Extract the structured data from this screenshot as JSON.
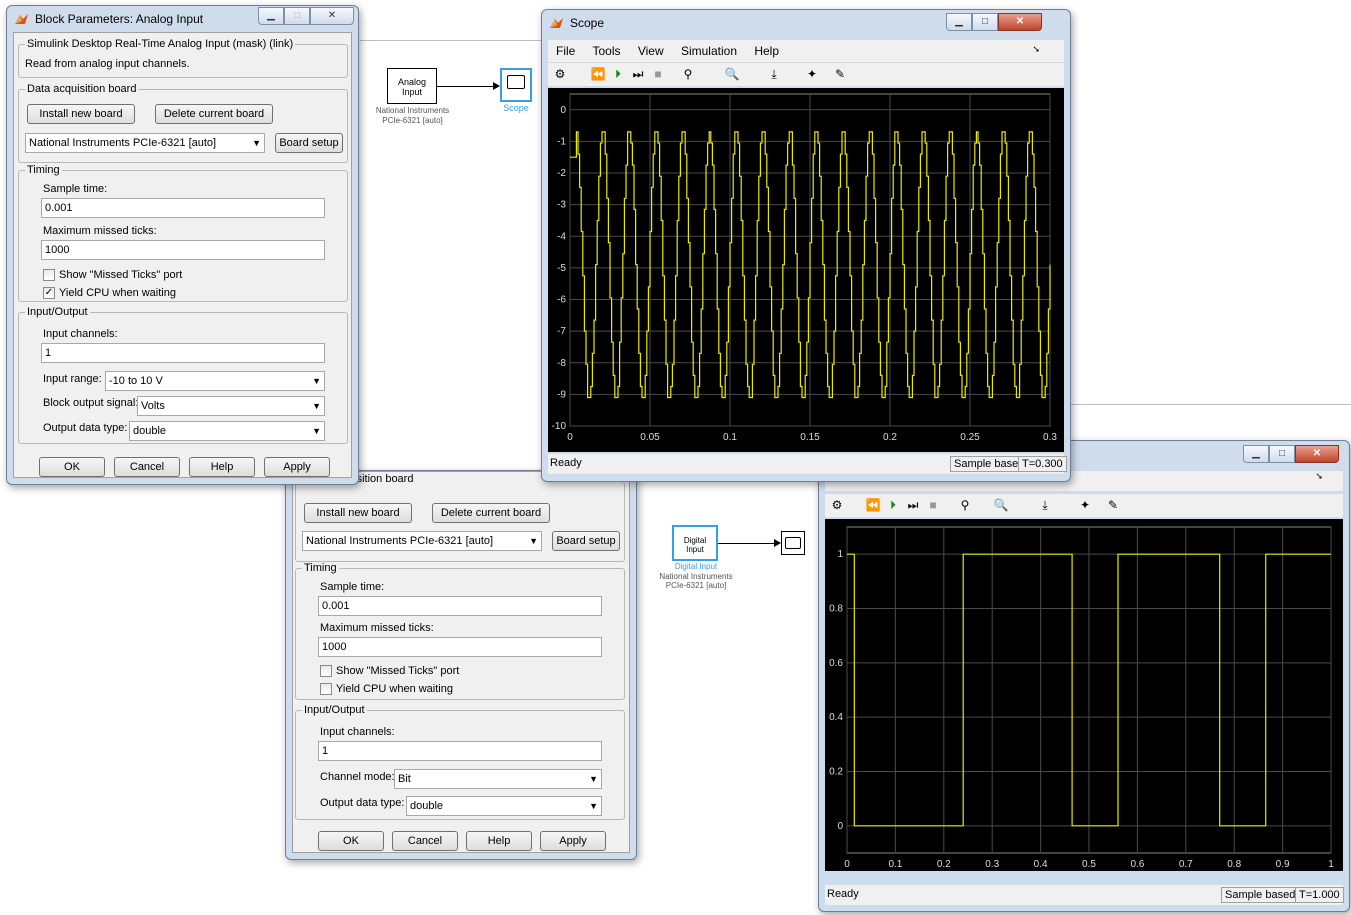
{
  "analog_dialog": {
    "title": "Block Parameters: Analog Input",
    "mask_group": "Simulink Desktop Real-Time Analog Input (mask) (link)",
    "description": "Read from analog input channels.",
    "daq_group": "Data acquisition board",
    "install_btn": "Install new board",
    "delete_btn": "Delete current board",
    "board_value": "National Instruments PCIe-6321 [auto]",
    "board_setup_btn": "Board setup",
    "timing_group": "Timing",
    "sample_time_label": "Sample time:",
    "sample_time_value": "0.001",
    "missed_ticks_label": "Maximum missed ticks:",
    "missed_ticks_value": "1000",
    "show_missed_label": "Show \"Missed Ticks\" port",
    "show_missed_checked": false,
    "yield_cpu_label": "Yield CPU when waiting",
    "yield_cpu_checked": true,
    "io_group": "Input/Output",
    "channels_label": "Input channels:",
    "channels_value": "1",
    "range_label": "Input range:",
    "range_value": "-10 to 10 V",
    "output_signal_label": "Block output signal:",
    "output_signal_value": "Volts",
    "dtype_label": "Output data type:",
    "dtype_value": "double",
    "ok": "OK",
    "cancel": "Cancel",
    "help": "Help",
    "apply": "Apply"
  },
  "digital_dialog": {
    "daq_group": "Data acquisition board",
    "install_btn": "Install new board",
    "delete_btn": "Delete current board",
    "board_value": "National Instruments PCIe-6321 [auto]",
    "board_setup_btn": "Board setup",
    "timing_group": "Timing",
    "sample_time_label": "Sample time:",
    "sample_time_value": "0.001",
    "missed_ticks_label": "Maximum missed ticks:",
    "missed_ticks_value": "1000",
    "show_missed_label": "Show \"Missed Ticks\" port",
    "show_missed_checked": false,
    "yield_cpu_label": "Yield CPU when waiting",
    "yield_cpu_checked": false,
    "io_group": "Input/Output",
    "channels_label": "Input channels:",
    "channels_value": "1",
    "mode_label": "Channel mode:",
    "mode_value": "Bit",
    "dtype_label": "Output data type:",
    "dtype_value": "double",
    "ok": "OK",
    "cancel": "Cancel",
    "help": "Help",
    "apply": "Apply"
  },
  "model": {
    "analog_block_label": "Analog Input",
    "analog_block_caption": "National Instruments PCIe-6321 [auto]",
    "scope_block_label": "Scope",
    "digital_block_label": "Digital Input",
    "digital_block_name": "Digital Input",
    "digital_block_caption": "National Instruments PCIe-6321 [auto]"
  },
  "scope1": {
    "title": "Scope",
    "menu": [
      "File",
      "Tools",
      "View",
      "Simulation",
      "Help"
    ],
    "status": "Ready",
    "mode": "Sample based",
    "time": "T=0.300"
  },
  "scope2": {
    "status": "Ready",
    "mode": "Sample based",
    "time": "T=1.000"
  },
  "colors": {
    "trace": "#e6e61a",
    "plot_bg": "#000000",
    "grid": "#4a4a4a",
    "selection": "#33a0e8"
  },
  "chart_data": [
    {
      "type": "line",
      "title": "",
      "xlabel": "",
      "ylabel": "",
      "xlim": [
        0,
        0.3
      ],
      "ylim": [
        -10,
        0.5
      ],
      "xticks": [
        0,
        0.05,
        0.1,
        0.15,
        0.2,
        0.25,
        0.3
      ],
      "yticks": [
        0,
        -1,
        -2,
        -3,
        -4,
        -5,
        -6,
        -7,
        -8,
        -9,
        -10
      ],
      "grid": true,
      "series": [
        {
          "period": 0.0167,
          "max": -0.6,
          "min": -9.2,
          "initial": -1.5
        }
      ]
    },
    {
      "type": "line",
      "title": "",
      "xlabel": "",
      "ylabel": "",
      "xlim": [
        0,
        1
      ],
      "ylim": [
        -0.1,
        1.1
      ],
      "xticks": [
        0,
        0.1,
        0.2,
        0.3,
        0.4,
        0.5,
        0.6,
        0.7,
        0.8,
        0.9,
        1
      ],
      "yticks": [
        0,
        0.2,
        0.4,
        0.6,
        0.8,
        1
      ],
      "grid": true,
      "series": [
        {
          "x": [
            0,
            0.015,
            0.015,
            0.24,
            0.24,
            0.465,
            0.465,
            0.56,
            0.56,
            0.77,
            0.77,
            0.865,
            0.865,
            1.0
          ],
          "y": [
            1,
            1,
            0,
            0,
            1,
            1,
            0,
            0,
            1,
            1,
            0,
            0,
            1,
            1
          ]
        }
      ]
    }
  ]
}
